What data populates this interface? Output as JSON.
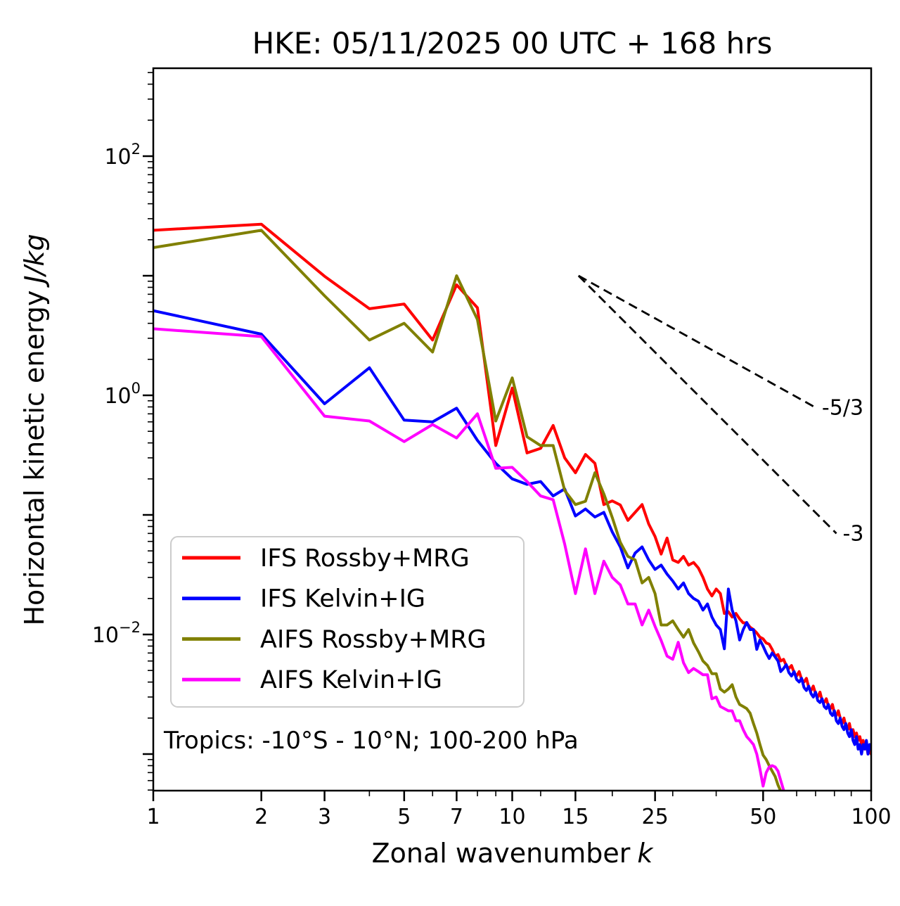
{
  "chart_data": {
    "type": "line",
    "title": "HKE: 05/11/2025 00 UTC + 168 hrs",
    "annotation": "Tropics: -10°S - 10°N; 100-200 hPa",
    "xlabel": {
      "text": "Zonal wavenumber",
      "italic": "k"
    },
    "ylabel": {
      "text": "Horizontal kinetic energy",
      "italic": "J/kg"
    },
    "x_scale": "log",
    "y_scale": "log",
    "xlim": [
      1,
      100
    ],
    "ylim": [
      0.00049,
      543
    ],
    "grid": false,
    "legend_position": "lower-left",
    "x_major_ticks": [
      1,
      2,
      3,
      5,
      7,
      10,
      15,
      25,
      50,
      100
    ],
    "x_tick_labels": [
      "1",
      "2",
      "3",
      "5",
      "7",
      "10",
      "15",
      "25",
      "50",
      "100"
    ],
    "x_minor_ticks": [
      4,
      6,
      8,
      9,
      12,
      19,
      28,
      37,
      62,
      70,
      79,
      88
    ],
    "y_decades": [
      2,
      1,
      0,
      -1,
      -2,
      -3
    ],
    "y_labeled_decades": [
      2,
      0,
      -2
    ],
    "y_tick_labels": [
      {
        "base": "10",
        "exp": "2",
        "decade": 2
      },
      {
        "base": "10",
        "exp": "0",
        "decade": 0
      },
      {
        "base": "10",
        "exp": "−2",
        "decade": -2
      }
    ],
    "reference_lines": [
      {
        "label": "-5/3",
        "slope": -1.667,
        "x": [
          15.3,
          70
        ],
        "y": [
          10,
          0.79
        ]
      },
      {
        "label": "-3",
        "slope": -3,
        "x": [
          15.3,
          80
        ],
        "y": [
          10,
          0.07
        ]
      }
    ],
    "series": [
      {
        "name": "IFS Rossby+MRG",
        "color": "#ff0000",
        "k": [
          1,
          2,
          3,
          4,
          5,
          6,
          7,
          8,
          9,
          10,
          11,
          12,
          13,
          14,
          15,
          16,
          17,
          18,
          19,
          20,
          21,
          22,
          23,
          24,
          25,
          26,
          27,
          28,
          29,
          30,
          31,
          32,
          33,
          34,
          35,
          36,
          37,
          38,
          39,
          40,
          41,
          42,
          43,
          44,
          45,
          46,
          47,
          48,
          49,
          50,
          51,
          52,
          53,
          54,
          55,
          56,
          57,
          58,
          59,
          60,
          61,
          62,
          63,
          64,
          65,
          66,
          67,
          68,
          69,
          70,
          71,
          72,
          73,
          74,
          75,
          76,
          77,
          78,
          79,
          80,
          81,
          82,
          83,
          84,
          85,
          86,
          87,
          88,
          89,
          90,
          91,
          92,
          93,
          94,
          95,
          96,
          97,
          98,
          99,
          100
        ],
        "values": [
          24,
          27,
          9.9,
          5.3,
          5.8,
          2.9,
          8.4,
          5.4,
          0.38,
          1.15,
          0.33,
          0.36,
          0.56,
          0.3,
          0.225,
          0.32,
          0.27,
          0.122,
          0.131,
          0.121,
          0.09,
          0.105,
          0.122,
          0.084,
          0.066,
          0.047,
          0.064,
          0.042,
          0.04,
          0.045,
          0.038,
          0.04,
          0.036,
          0.03,
          0.024,
          0.021,
          0.024,
          0.022,
          0.015,
          0.0155,
          0.014,
          0.015,
          0.0135,
          0.0125,
          0.0125,
          0.0115,
          0.011,
          0.0103,
          0.0095,
          0.0092,
          0.0085,
          0.0083,
          0.0075,
          0.0066,
          0.0068,
          0.006,
          0.0062,
          0.0055,
          0.0052,
          0.0055,
          0.0048,
          0.0045,
          0.0049,
          0.0042,
          0.004,
          0.0043,
          0.0036,
          0.0034,
          0.0037,
          0.0032,
          0.003,
          0.0033,
          0.0028,
          0.0027,
          0.0029,
          0.0025,
          0.0024,
          0.0026,
          0.0022,
          0.0021,
          0.0023,
          0.002,
          0.0018,
          0.002,
          0.0017,
          0.0016,
          0.0018,
          0.0015,
          0.0016,
          0.0014,
          0.0015,
          0.0013,
          0.0014,
          0.0012,
          0.0013,
          0.0011,
          0.0012,
          0.001,
          0.0011,
          0.001
        ]
      },
      {
        "name": "IFS Kelvin+IG",
        "color": "#0000ff",
        "k": [
          1,
          2,
          3,
          4,
          5,
          6,
          7,
          8,
          9,
          10,
          11,
          12,
          13,
          14,
          15,
          16,
          17,
          18,
          19,
          20,
          21,
          22,
          23,
          24,
          25,
          26,
          27,
          28,
          29,
          30,
          31,
          32,
          33,
          34,
          35,
          36,
          37,
          38,
          39,
          40,
          41,
          42,
          43,
          44,
          45,
          46,
          47,
          48,
          49,
          50,
          51,
          52,
          53,
          54,
          55,
          56,
          57,
          58,
          59,
          60,
          61,
          62,
          63,
          64,
          65,
          66,
          67,
          68,
          69,
          70,
          71,
          72,
          73,
          74,
          75,
          76,
          77,
          78,
          79,
          80,
          81,
          82,
          83,
          84,
          85,
          86,
          87,
          88,
          89,
          90,
          91,
          92,
          93,
          94,
          95,
          96,
          97,
          98,
          99,
          100
        ],
        "values": [
          5.1,
          3.25,
          0.85,
          1.7,
          0.62,
          0.6,
          0.78,
          0.42,
          0.27,
          0.2,
          0.18,
          0.19,
          0.144,
          0.165,
          0.098,
          0.112,
          0.096,
          0.105,
          0.072,
          0.054,
          0.036,
          0.048,
          0.054,
          0.042,
          0.035,
          0.038,
          0.032,
          0.028,
          0.024,
          0.027,
          0.022,
          0.02,
          0.019,
          0.016,
          0.018,
          0.014,
          0.012,
          0.011,
          0.0076,
          0.024,
          0.016,
          0.013,
          0.009,
          0.011,
          0.0126,
          0.011,
          0.011,
          0.0075,
          0.009,
          0.008,
          0.007,
          0.0063,
          0.007,
          0.0065,
          0.006,
          0.0049,
          0.0052,
          0.0056,
          0.0048,
          0.0045,
          0.0049,
          0.0042,
          0.004,
          0.0043,
          0.0036,
          0.0034,
          0.0037,
          0.0032,
          0.003,
          0.0033,
          0.0028,
          0.0027,
          0.0029,
          0.0025,
          0.0024,
          0.0026,
          0.0022,
          0.0021,
          0.0023,
          0.0019,
          0.0018,
          0.002,
          0.0017,
          0.0016,
          0.0018,
          0.0015,
          0.0014,
          0.0016,
          0.0013,
          0.0012,
          0.0014,
          0.0011,
          0.0012,
          0.001,
          0.0012,
          0.0011,
          0.0013,
          0.001,
          0.0012,
          0.0011
        ]
      },
      {
        "name": "AIFS Rossby+MRG",
        "color": "#808000",
        "k": [
          1,
          2,
          3,
          4,
          5,
          6,
          7,
          8,
          9,
          10,
          11,
          12,
          13,
          14,
          15,
          16,
          17,
          18,
          19,
          20,
          21,
          22,
          23,
          24,
          25,
          26,
          27,
          28,
          29,
          30,
          31,
          32,
          33,
          34,
          35,
          36,
          37,
          38,
          39,
          40,
          41,
          42,
          43,
          44,
          45,
          46,
          47,
          48,
          49,
          50,
          51,
          52,
          53,
          54,
          55,
          56,
          57
        ],
        "values": [
          17.2,
          24,
          6.8,
          2.9,
          4.0,
          2.3,
          10,
          4.3,
          0.61,
          1.4,
          0.45,
          0.38,
          0.38,
          0.16,
          0.122,
          0.13,
          0.225,
          0.15,
          0.095,
          0.059,
          0.045,
          0.042,
          0.027,
          0.03,
          0.022,
          0.012,
          0.012,
          0.013,
          0.011,
          0.0095,
          0.011,
          0.0085,
          0.0072,
          0.006,
          0.0055,
          0.0047,
          0.0047,
          0.0035,
          0.0033,
          0.0035,
          0.0038,
          0.003,
          0.0026,
          0.0025,
          0.0024,
          0.0022,
          0.0018,
          0.0015,
          0.0012,
          0.00098,
          0.0009,
          0.0008,
          0.00072,
          0.00065,
          0.00055,
          0.00049,
          0.00038
        ]
      },
      {
        "name": "AIFS Kelvin+IG",
        "color": "#ff00ff",
        "k": [
          1,
          2,
          3,
          4,
          5,
          6,
          7,
          8,
          9,
          10,
          11,
          12,
          13,
          14,
          15,
          16,
          17,
          18,
          19,
          20,
          21,
          22,
          23,
          24,
          25,
          26,
          27,
          28,
          29,
          30,
          31,
          32,
          33,
          34,
          35,
          36,
          37,
          38,
          39,
          40,
          41,
          42,
          43,
          44,
          45,
          46,
          47,
          48,
          49,
          50,
          51,
          52,
          53,
          54,
          55,
          56,
          57,
          58,
          59
        ],
        "values": [
          3.6,
          3.1,
          0.67,
          0.61,
          0.41,
          0.57,
          0.44,
          0.7,
          0.245,
          0.25,
          0.19,
          0.144,
          0.134,
          0.057,
          0.022,
          0.052,
          0.022,
          0.041,
          0.03,
          0.026,
          0.018,
          0.018,
          0.012,
          0.016,
          0.0117,
          0.0089,
          0.0066,
          0.0062,
          0.0086,
          0.0058,
          0.0048,
          0.0052,
          0.0049,
          0.0046,
          0.0046,
          0.0029,
          0.003,
          0.0025,
          0.0024,
          0.0023,
          0.0023,
          0.0019,
          0.0019,
          0.0016,
          0.0014,
          0.0013,
          0.0012,
          0.001,
          0.00075,
          0.00054,
          0.0007,
          0.00078,
          0.0008,
          0.00078,
          0.00072,
          0.0006,
          0.0005,
          0.00044,
          0.00038
        ]
      }
    ],
    "colors": {
      "axis": "#000000",
      "legend_border": "#cccccc",
      "legend_background": "#ffffff",
      "reference_line": "#000000"
    }
  }
}
